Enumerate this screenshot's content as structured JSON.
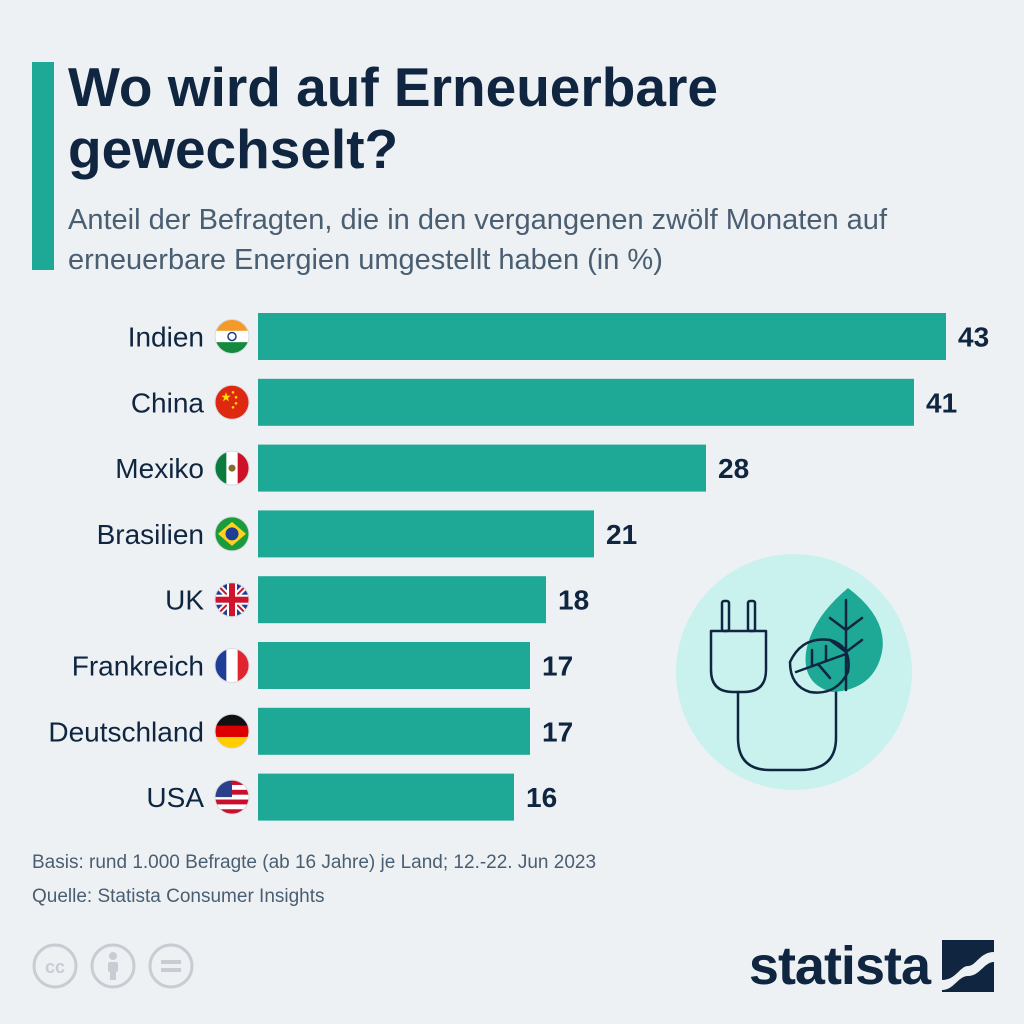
{
  "header": {
    "title": "Wo wird auf Erneuerbare gewechselt?",
    "subtitle": "Anteil der Befragten, die in den vergangenen zwölf Monaten auf erneuerbare Energien umgestellt haben (in %)"
  },
  "colors": {
    "accent": "#1ea896",
    "bar": "#1ea896",
    "title": "#0f2540",
    "subtitle": "#4a5e72",
    "background": "#eef1f4",
    "illustration_circle": "#c9f2ef"
  },
  "chart_data": {
    "type": "bar",
    "orientation": "horizontal",
    "categories": [
      "Indien",
      "China",
      "Mexiko",
      "Brasilien",
      "UK",
      "Frankreich",
      "Deutschland",
      "USA"
    ],
    "values": [
      43,
      41,
      28,
      21,
      18,
      17,
      17,
      16
    ],
    "flags": [
      "india-flag-icon",
      "china-flag-icon",
      "mexico-flag-icon",
      "brazil-flag-icon",
      "uk-flag-icon",
      "france-flag-icon",
      "germany-flag-icon",
      "usa-flag-icon"
    ],
    "xlim": [
      0,
      43
    ],
    "grid": false,
    "data_labels": true
  },
  "illustration": {
    "icon": "plug-leaf-icon"
  },
  "footer": {
    "basis": "Basis: rund 1.000 Befragte (ab 16 Jahre) je Land; 12.-22. Jun 2023",
    "source": "Quelle: Statista Consumer Insights"
  },
  "license_icons": [
    "cc-icon",
    "attribution-icon",
    "no-derivatives-icon"
  ],
  "logo": {
    "text": "statista"
  }
}
